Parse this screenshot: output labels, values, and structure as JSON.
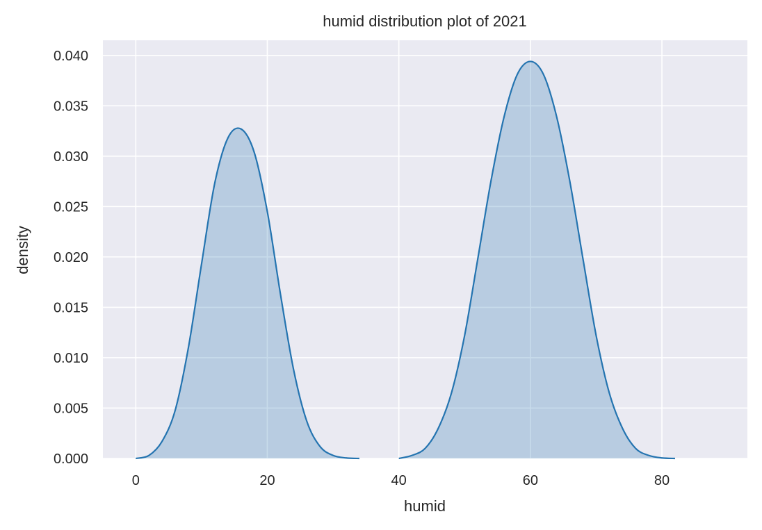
{
  "chart_data": {
    "type": "area",
    "title": "humid distribution plot of 2021",
    "xlabel": "humid",
    "ylabel": "density",
    "xlim": [
      -5,
      93
    ],
    "ylim": [
      0,
      0.0415
    ],
    "xticks": [
      0,
      20,
      40,
      60,
      80
    ],
    "yticks": [
      0.0,
      0.005,
      0.01,
      0.015,
      0.02,
      0.025,
      0.03,
      0.035,
      0.04
    ],
    "ytick_labels": [
      "0.000",
      "0.005",
      "0.010",
      "0.015",
      "0.020",
      "0.025",
      "0.030",
      "0.035",
      "0.040"
    ],
    "grid": true,
    "colors": {
      "background": "#eaeaf2",
      "grid": "#ffffff",
      "line": "#2474b0",
      "fill": "#b7cee3"
    },
    "series": [
      {
        "x": [
          0,
          2,
          4,
          6,
          8,
          10,
          12,
          14,
          16,
          18,
          20,
          22,
          24,
          26,
          28,
          30,
          32,
          34
        ],
        "y": [
          0.0,
          0.0003,
          0.0017,
          0.0048,
          0.011,
          0.0193,
          0.0273,
          0.0318,
          0.0327,
          0.0304,
          0.0245,
          0.0163,
          0.0088,
          0.0037,
          0.0012,
          0.0003,
          5e-05,
          0.0
        ]
      },
      {
        "x": [
          40,
          42,
          44,
          46,
          48,
          50,
          52,
          54,
          56,
          58,
          60,
          62,
          64,
          66,
          68,
          70,
          72,
          74,
          76,
          78,
          80,
          82
        ],
        "y": [
          0.0,
          0.0003,
          0.001,
          0.003,
          0.0065,
          0.0122,
          0.0198,
          0.0275,
          0.0339,
          0.0381,
          0.0394,
          0.0381,
          0.0339,
          0.0275,
          0.0198,
          0.0122,
          0.0065,
          0.003,
          0.001,
          0.0003,
          5e-05,
          0.0
        ]
      }
    ]
  }
}
